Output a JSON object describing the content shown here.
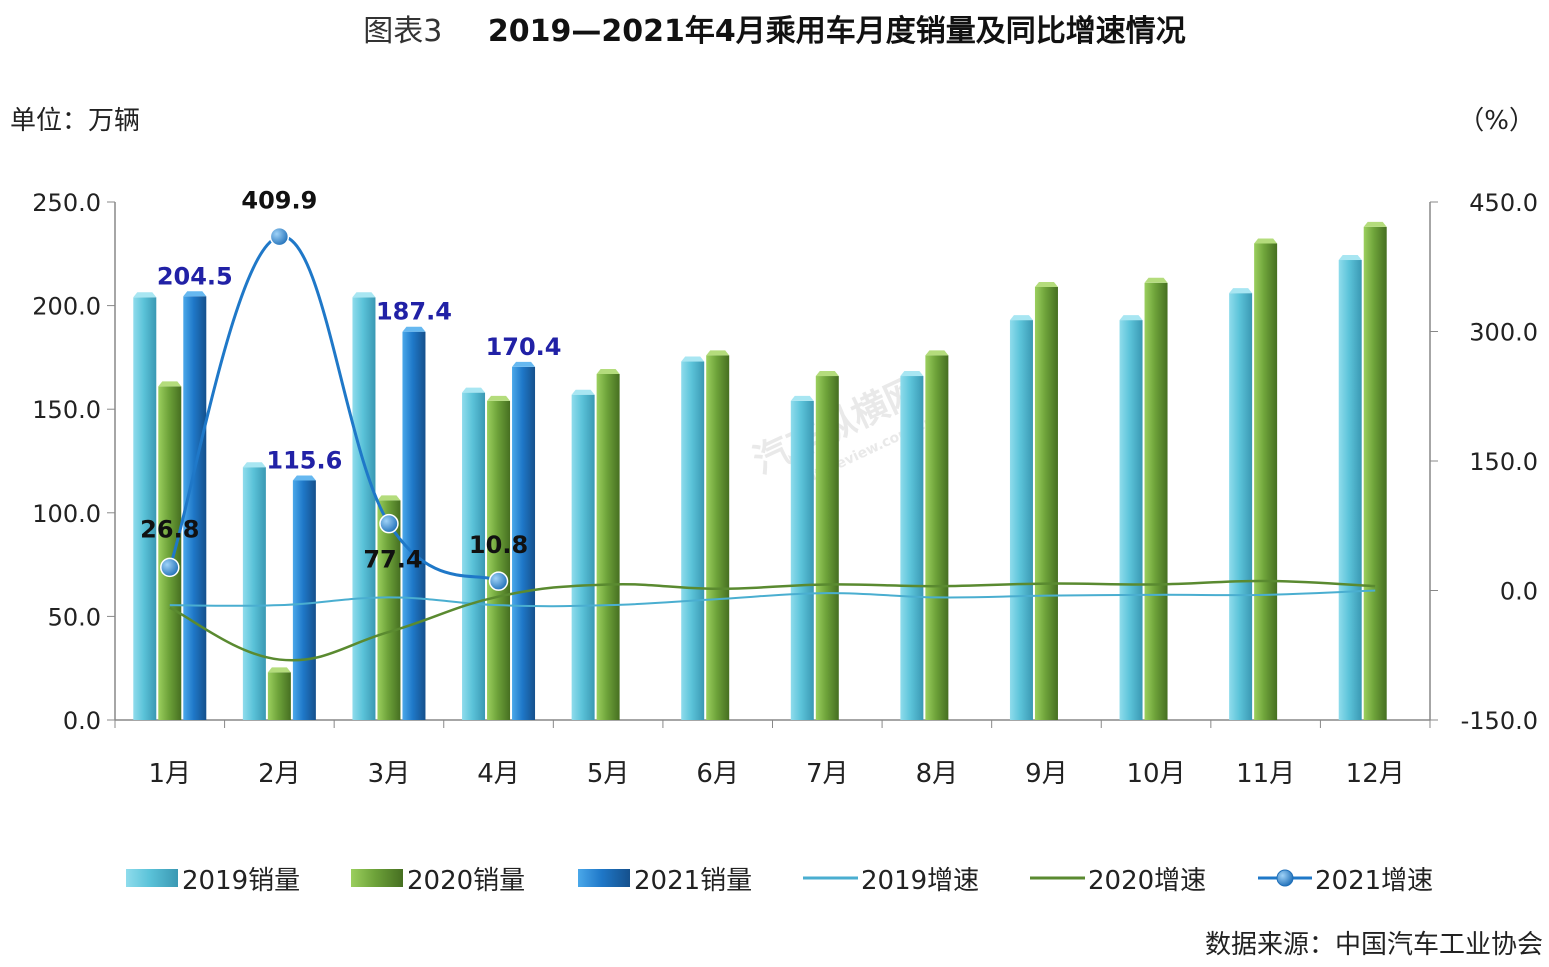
{
  "header": {
    "figure_label": "图表3",
    "title": "2019—2021年4月乘用车月度销量及同比增速情况"
  },
  "unit_left": "单位：万辆",
  "unit_right": "（%）",
  "source": "数据来源：中国汽车工业协会",
  "watermark": {
    "cn": "汽车纵横网",
    "en": "autoreview.com.cn"
  },
  "colors": {
    "s2019": "#5bc3d9",
    "s2020": "#6ea33a",
    "s2021": "#1f78c8",
    "l2019": "#4aaed0",
    "l2020": "#5a8a30",
    "l2021": "#1f78c8"
  },
  "chart_data": {
    "type": "bar",
    "categories": [
      "1月",
      "2月",
      "3月",
      "4月",
      "5月",
      "6月",
      "7月",
      "8月",
      "9月",
      "10月",
      "11月",
      "12月"
    ],
    "y_left": {
      "min": 0,
      "max": 250,
      "step": 50,
      "ticks": [
        "0.0",
        "50.0",
        "100.0",
        "150.0",
        "200.0",
        "250.0"
      ]
    },
    "y_right": {
      "min": -150,
      "max": 450,
      "step": 150,
      "ticks": [
        "-150.0",
        "0.0",
        "150.0",
        "300.0",
        "450.0"
      ]
    },
    "bar_series": [
      {
        "name": "2019销量",
        "values": [
          204,
          122,
          204,
          158,
          157,
          173,
          154,
          166,
          193,
          193,
          206,
          222
        ]
      },
      {
        "name": "2020销量",
        "values": [
          161,
          23,
          106,
          154,
          167,
          176,
          166,
          176,
          209,
          211,
          230,
          238
        ]
      },
      {
        "name": "2021销量",
        "values": [
          204.5,
          115.6,
          187.4,
          170.4,
          null,
          null,
          null,
          null,
          null,
          null,
          null,
          null
        ],
        "labels": [
          "204.5",
          "115.6",
          "187.4",
          "170.4"
        ]
      }
    ],
    "line_series": [
      {
        "name": "2019增速",
        "values": [
          -17,
          -17,
          -8,
          -17,
          -17,
          -10,
          -3,
          -8,
          -6,
          -5,
          -5,
          0
        ]
      },
      {
        "name": "2020增速",
        "values": [
          -20,
          -80,
          -48,
          -7,
          7,
          2,
          7,
          5,
          8,
          7,
          11,
          5
        ]
      },
      {
        "name": "2021增速",
        "values": [
          26.8,
          409.9,
          77.4,
          10.8,
          null,
          null,
          null,
          null,
          null,
          null,
          null,
          null
        ],
        "labels": [
          "26.8",
          "409.9",
          "77.4",
          "10.8"
        ]
      }
    ],
    "legend_position": "bottom",
    "grid": false
  }
}
